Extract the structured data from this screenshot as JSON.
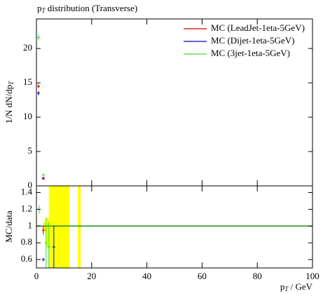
{
  "chart_data": [
    {
      "type": "scatter",
      "title": "p_T distribution (Transverse)",
      "ylabel": "1/N dN/dp_T",
      "xlim": [
        0,
        100
      ],
      "ylim": [
        0,
        24.3
      ],
      "yticks": [
        0,
        5,
        10,
        15,
        20
      ],
      "legend": "upper right",
      "series": [
        {
          "name": "MC (LeadJet-1eta-5GeV)",
          "color": "#cc0000",
          "x": [
            0.75,
            2.5
          ],
          "values": [
            14.5,
            1.2
          ],
          "errors": [
            0.3,
            0.1
          ]
        },
        {
          "name": "MC (Dijet-1eta-5GeV)",
          "color": "#0000cc",
          "x": [
            0.75,
            2.5
          ],
          "values": [
            13.5,
            1.0
          ],
          "errors": [
            0.3,
            0.1
          ]
        },
        {
          "name": "MC (3jet-1eta-5GeV)",
          "color": "#33dd33",
          "x": [
            0.75,
            2.5
          ],
          "values": [
            21.6,
            1.6
          ],
          "errors": [
            0.4,
            0.2
          ]
        }
      ]
    },
    {
      "type": "ratio",
      "ylabel": "MC/data",
      "xlabel": "p_T / GeV",
      "xlim": [
        0,
        100
      ],
      "xticks": [
        0,
        20,
        40,
        60,
        80,
        100
      ],
      "ylim": [
        0.5,
        1.48
      ],
      "yticks": [
        0.6,
        0.8,
        1,
        1.2,
        1.4
      ],
      "reference_line": 1,
      "reference_color": "#228b22",
      "band": {
        "color": "#ffff00",
        "x0": [
          2.5,
          3.5,
          4.5,
          6,
          15
        ],
        "x1": [
          3.5,
          4.5,
          6,
          12,
          16
        ],
        "low": [
          0.93,
          0.75,
          0.3,
          0.3,
          0.3
        ],
        "high": [
          1.05,
          1.1,
          1.8,
          1.8,
          1.8
        ]
      },
      "series": [
        {
          "name": "MC (LeadJet-1eta-5GeV)",
          "color": "#cc0000",
          "x": [
            2.5
          ],
          "values": [
            0.95
          ],
          "errors": [
            0.05
          ]
        },
        {
          "name": "MC (Dijet-1eta-5GeV)",
          "color": "#0000cc",
          "x": [
            2.5,
            6.3
          ],
          "values": [
            0.6,
            0.75
          ],
          "errors": [
            0.02,
            0.25
          ]
        },
        {
          "name": "MC (3jet-1eta-5GeV)",
          "color": "#33dd33",
          "x": [
            1,
            3.5,
            4.5
          ],
          "values": [
            1.2,
            0.8,
            0.75
          ],
          "errors": [
            0.05,
            0.3,
            0.3
          ]
        }
      ]
    }
  ]
}
